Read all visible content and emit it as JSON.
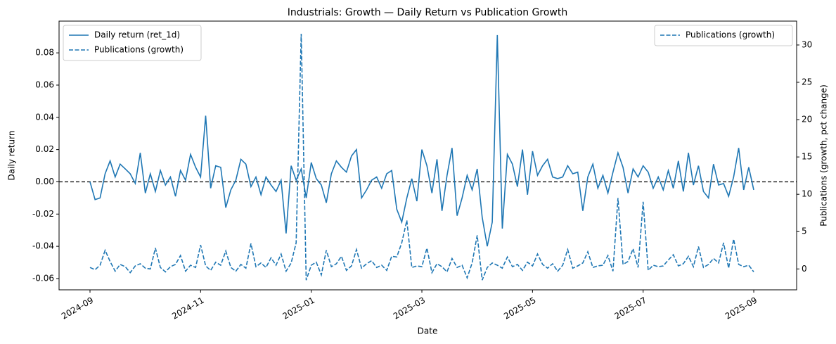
{
  "chart_data": {
    "type": "line",
    "title": "Industrials: Growth — Daily Return vs Publication Growth",
    "xlabel": "Date",
    "ylabel": "Daily return",
    "y2label": "Publications (growth, pct change)",
    "x": [
      "2024-09",
      "2024-09",
      "2024-09",
      "2024-09",
      "2024-09",
      "2024-09",
      "2024-09",
      "2024-09",
      "2024-09",
      "2024-09",
      "2024-09",
      "2024-10",
      "2024-10",
      "2024-10",
      "2024-10",
      "2024-10",
      "2024-10",
      "2024-10",
      "2024-10",
      "2024-10",
      "2024-10",
      "2024-10",
      "2024-11",
      "2024-11",
      "2024-11",
      "2024-11",
      "2024-11",
      "2024-11",
      "2024-11",
      "2024-11",
      "2024-11",
      "2024-11",
      "2024-11",
      "2024-12",
      "2024-12",
      "2024-12",
      "2024-12",
      "2024-12",
      "2024-12",
      "2024-12",
      "2024-12",
      "2024-12",
      "2024-12",
      "2024-12",
      "2025-01",
      "2025-01",
      "2025-01",
      "2025-01",
      "2025-01",
      "2025-01",
      "2025-01",
      "2025-01",
      "2025-01",
      "2025-01",
      "2025-01",
      "2025-02",
      "2025-02",
      "2025-02",
      "2025-02",
      "2025-02",
      "2025-02",
      "2025-02",
      "2025-02",
      "2025-02",
      "2025-02",
      "2025-02",
      "2025-03",
      "2025-03",
      "2025-03",
      "2025-03",
      "2025-03",
      "2025-03",
      "2025-03",
      "2025-03",
      "2025-03",
      "2025-03",
      "2025-03",
      "2025-04",
      "2025-04",
      "2025-04",
      "2025-04",
      "2025-04",
      "2025-04",
      "2025-04",
      "2025-04",
      "2025-04",
      "2025-04",
      "2025-04",
      "2025-05",
      "2025-05",
      "2025-05",
      "2025-05",
      "2025-05",
      "2025-05",
      "2025-05",
      "2025-05",
      "2025-05",
      "2025-05",
      "2025-05",
      "2025-06",
      "2025-06",
      "2025-06",
      "2025-06",
      "2025-06",
      "2025-06",
      "2025-06",
      "2025-06",
      "2025-06",
      "2025-06",
      "2025-06",
      "2025-07",
      "2025-07",
      "2025-07",
      "2025-07",
      "2025-07",
      "2025-07",
      "2025-07",
      "2025-07",
      "2025-07",
      "2025-07",
      "2025-07",
      "2025-08",
      "2025-08",
      "2025-08",
      "2025-08",
      "2025-08",
      "2025-08",
      "2025-08",
      "2025-08",
      "2025-08",
      "2025-08",
      "2025-08",
      "2025-09"
    ],
    "series": [
      {
        "name": "Daily return (ret_1d)",
        "color": "#1f77b4",
        "linestyle": "solid",
        "axis": "y",
        "values": [
          0.0,
          -0.011,
          -0.01,
          0.005,
          0.013,
          0.003,
          0.011,
          0.008,
          0.005,
          -0.001,
          0.018,
          -0.007,
          0.005,
          -0.006,
          0.007,
          -0.002,
          0.003,
          -0.009,
          0.007,
          0.001,
          0.017,
          0.009,
          0.003,
          0.041,
          -0.004,
          0.01,
          0.009,
          -0.016,
          -0.005,
          0.001,
          0.014,
          0.011,
          -0.003,
          0.003,
          -0.008,
          0.003,
          -0.002,
          -0.006,
          0.001,
          -0.032,
          0.01,
          0.001,
          0.008,
          -0.01,
          0.012,
          0.002,
          -0.002,
          -0.013,
          0.005,
          0.013,
          0.009,
          0.006,
          0.016,
          0.02,
          -0.01,
          -0.005,
          0.001,
          0.003,
          -0.004,
          0.005,
          0.007,
          -0.017,
          -0.025,
          -0.01,
          0.002,
          -0.012,
          0.02,
          0.01,
          -0.007,
          0.014,
          -0.018,
          0.004,
          0.021,
          -0.021,
          -0.01,
          0.004,
          -0.005,
          0.008,
          -0.022,
          -0.04,
          -0.025,
          0.091,
          -0.029,
          0.017,
          0.011,
          -0.003,
          0.02,
          -0.008,
          0.019,
          0.004,
          0.01,
          0.014,
          0.003,
          0.002,
          0.003,
          0.01,
          0.005,
          0.006,
          -0.018,
          0.003,
          0.011,
          -0.004,
          0.004,
          -0.007,
          0.006,
          0.018,
          0.009,
          -0.007,
          0.008,
          0.003,
          0.01,
          0.006,
          -0.004,
          0.003,
          -0.005,
          0.007,
          -0.004,
          0.013,
          -0.006,
          0.018,
          -0.002,
          0.01,
          -0.006,
          -0.01,
          0.011,
          -0.002,
          -0.001,
          -0.009,
          0.003,
          0.021,
          -0.005,
          0.009,
          -0.005
        ]
      },
      {
        "name": "Publications (growth)",
        "color": "#1f77b4",
        "linestyle": "dashed",
        "axis": "y2",
        "values": [
          0.2,
          -0.1,
          0.5,
          2.5,
          1.0,
          -0.3,
          0.6,
          0.3,
          -0.5,
          0.4,
          0.7,
          0.1,
          0.0,
          2.8,
          0.2,
          -0.4,
          0.3,
          0.6,
          1.8,
          -0.3,
          0.5,
          0.2,
          3.2,
          0.4,
          -0.2,
          0.9,
          0.5,
          2.4,
          0.2,
          -0.3,
          0.6,
          0.1,
          3.4,
          0.3,
          0.8,
          0.2,
          1.5,
          0.5,
          2.0,
          -0.3,
          0.8,
          3.5,
          31.5,
          -1.5,
          0.5,
          0.9,
          -0.8,
          2.5,
          0.3,
          0.7,
          1.7,
          -0.2,
          0.4,
          2.6,
          0.1,
          0.7,
          1.1,
          0.2,
          0.5,
          -0.2,
          1.7,
          1.6,
          3.5,
          6.5,
          0.2,
          0.4,
          0.3,
          2.8,
          -0.5,
          0.7,
          0.3,
          -0.4,
          1.4,
          0.2,
          0.5,
          -1.2,
          0.8,
          4.5,
          -1.5,
          0.2,
          0.8,
          0.5,
          0.1,
          1.6,
          0.3,
          0.6,
          -0.2,
          0.9,
          0.4,
          2.0,
          0.6,
          0.1,
          0.7,
          -0.3,
          0.5,
          2.6,
          0.1,
          0.4,
          0.8,
          2.3,
          0.2,
          0.4,
          0.5,
          1.8,
          -0.3,
          9.5,
          0.6,
          1.0,
          2.7,
          0.2,
          9.0,
          -0.2,
          0.5,
          0.3,
          0.4,
          1.2,
          1.9,
          0.4,
          0.7,
          1.7,
          0.3,
          3.0,
          0.2,
          0.6,
          1.4,
          0.8,
          3.5,
          0.1,
          4.0,
          0.6,
          0.3,
          0.5,
          -0.4
        ]
      }
    ],
    "xticks": [
      "2024-09",
      "2024-11",
      "2025-01",
      "2025-03",
      "2025-05",
      "2025-07",
      "2025-09"
    ],
    "ylim": [
      -0.067,
      0.0997
    ],
    "yticks": [
      {
        "value": -0.06,
        "label": "-0.06"
      },
      {
        "value": -0.04,
        "label": "-0.04"
      },
      {
        "value": -0.02,
        "label": "-0.02"
      },
      {
        "value": 0,
        "label": "0.00"
      },
      {
        "value": 0.02,
        "label": "0.02"
      },
      {
        "value": 0.04,
        "label": "0.04"
      },
      {
        "value": 0.06,
        "label": "0.06"
      },
      {
        "value": 0.08,
        "label": "0.08"
      }
    ],
    "y2lim": [
      -2.8,
      33.2
    ],
    "y2ticks": [
      0,
      5,
      10,
      15,
      20,
      25,
      30
    ],
    "hline": 0,
    "hline_color": "#000000",
    "legend": "upper left",
    "y2_legend": "upper right",
    "grid": false
  }
}
